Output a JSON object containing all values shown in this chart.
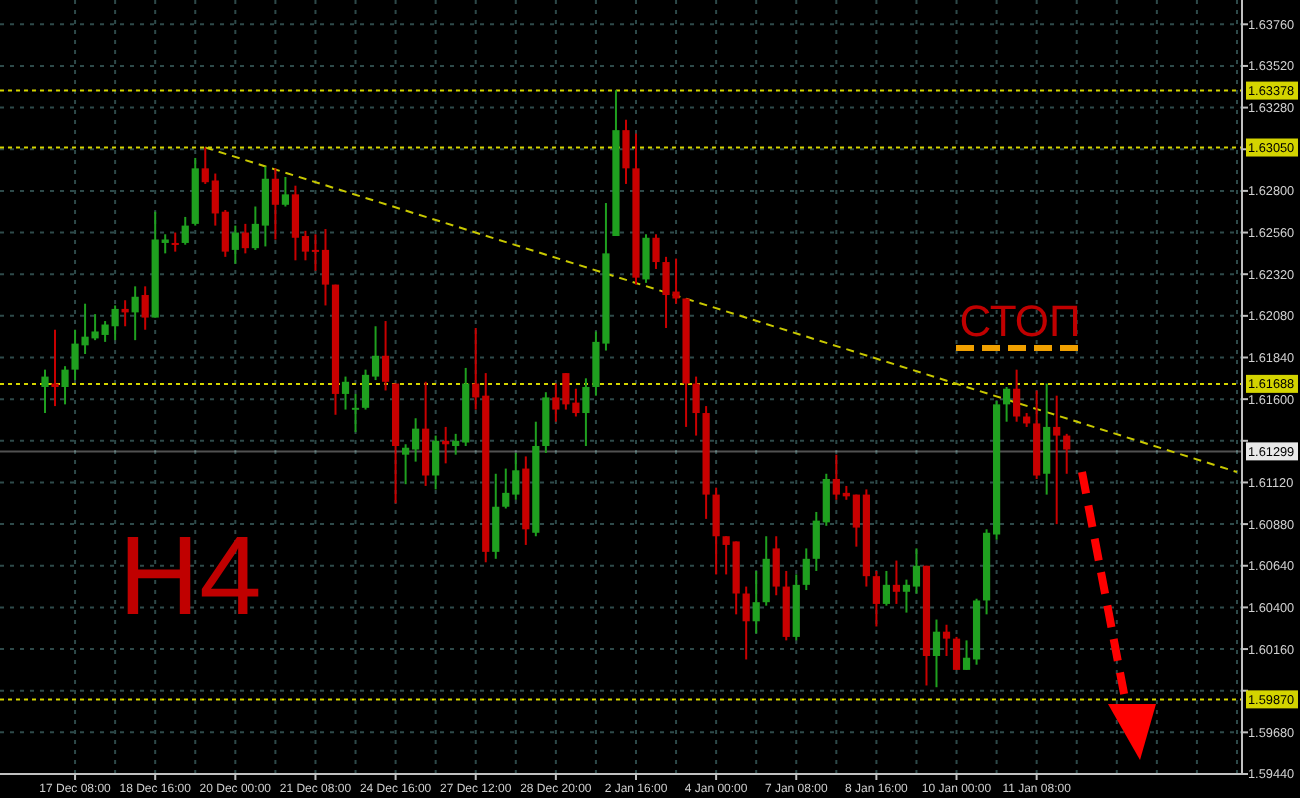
{
  "chart_data": {
    "type": "candlestick",
    "grid": true,
    "annotations": [
      "H4",
      "СТОП"
    ],
    "categories": [
      null,
      null,
      null,
      "17 Dec 08:00",
      null,
      null,
      null,
      null,
      null,
      null,
      null,
      "18 Dec 16:00",
      null,
      null,
      null,
      null,
      null,
      null,
      null,
      "20 Dec 00:00",
      null,
      null,
      null,
      null,
      null,
      null,
      null,
      "21 Dec 08:00",
      null,
      null,
      null,
      null,
      null,
      null,
      null,
      "24 Dec 16:00",
      null,
      null,
      null,
      null,
      null,
      null,
      null,
      "27 Dec 12:00",
      null,
      null,
      null,
      null,
      null,
      null,
      null,
      "28 Dec 20:00",
      null,
      null,
      null,
      null,
      null,
      null,
      null,
      "2 Jan 16:00",
      null,
      null,
      null,
      null,
      null,
      null,
      null,
      "4 Jan 00:00",
      null,
      null,
      null,
      null,
      null,
      null,
      null,
      "7 Jan 08:00",
      null,
      null,
      null,
      null,
      null,
      null,
      null,
      "8 Jan 16:00",
      null,
      null,
      null,
      null,
      null,
      null,
      null,
      "10 Jan 00:00",
      null,
      null,
      null,
      null,
      null,
      null,
      null,
      "11 Jan 08:00",
      null,
      null,
      null,
      null,
      null,
      null,
      null,
      null,
      null,
      null,
      null,
      null,
      null,
      null,
      null,
      null,
      null,
      null,
      null,
      null
    ],
    "ylim": [
      1.5944,
      1.639
    ],
    "yticks": [
      {
        "value": 1.5944,
        "label": "1.59440"
      },
      {
        "value": 1.5968,
        "label": "1.59680"
      },
      {
        "value": 1.5992,
        "label": null
      },
      {
        "value": 1.6016,
        "label": "1.60160"
      },
      {
        "value": 1.604,
        "label": "1.60400"
      },
      {
        "value": 1.6064,
        "label": "1.60640"
      },
      {
        "value": 1.6088,
        "label": "1.60880"
      },
      {
        "value": 1.6112,
        "label": "1.61120"
      },
      {
        "value": 1.6136,
        "label": null
      },
      {
        "value": 1.616,
        "label": "1.61600"
      },
      {
        "value": 1.6184,
        "label": "1.61840"
      },
      {
        "value": 1.6208,
        "label": "1.62080"
      },
      {
        "value": 1.6232,
        "label": "1.62320"
      },
      {
        "value": 1.6256,
        "label": "1.62560"
      },
      {
        "value": 1.628,
        "label": "1.62800"
      },
      {
        "value": 1.6304,
        "label": null
      },
      {
        "value": 1.6328,
        "label": "1.63280"
      },
      {
        "value": 1.6352,
        "label": "1.63520"
      },
      {
        "value": 1.6376,
        "label": "1.63760"
      }
    ],
    "ref_lines": [
      {
        "axis": "y",
        "value": 1.63378,
        "label": "1.63378",
        "color": "#d4d400",
        "line_style": "dotted"
      },
      {
        "axis": "y",
        "value": 1.6305,
        "label": "1.63050",
        "color": "#d4d400",
        "line_style": "dotted"
      },
      {
        "axis": "y",
        "value": 1.61688,
        "label": "1.61688",
        "color": "#d4d400",
        "line_style": "dotted"
      },
      {
        "axis": "y",
        "value": 1.5987,
        "label": "1.59870",
        "color": "#d4d400",
        "line_style": "dotted"
      },
      {
        "axis": "y",
        "value": 1.61299,
        "label": "1.61299",
        "color": "#e8e8e8",
        "line_style": "solid"
      }
    ],
    "series": [
      {
        "type": "line",
        "color": "#c8c800",
        "line_style": "dashed",
        "values": [
          null,
          null,
          null,
          null,
          null,
          null,
          null,
          null,
          null,
          null,
          null,
          null,
          null,
          null,
          null,
          null,
          1.6305,
          null,
          null,
          null,
          null,
          null,
          null,
          null,
          null,
          null,
          null,
          null,
          null,
          null,
          null,
          null,
          null,
          null,
          null,
          null,
          null,
          null,
          null,
          null,
          null,
          null,
          null,
          null,
          null,
          null,
          null,
          null,
          null,
          null,
          null,
          null,
          null,
          null,
          null,
          null,
          null,
          null,
          null,
          null,
          null,
          null,
          null,
          null,
          null,
          null,
          null,
          null,
          null,
          null,
          null,
          null,
          null,
          null,
          null,
          null,
          null,
          null,
          null,
          null,
          null,
          null,
          null,
          null,
          null,
          null,
          null,
          null,
          null,
          null,
          null,
          null,
          null,
          null,
          null,
          null,
          null,
          null,
          null,
          null,
          null,
          null,
          null,
          null,
          null,
          null,
          null,
          null,
          null,
          null,
          null,
          null,
          null,
          null,
          null,
          null,
          null,
          null,
          null,
          1.6118
        ]
      }
    ],
    "ohlc": [
      [
        1.6167,
        1.6177,
        1.6152,
        1.6173
      ],
      [
        1.6169,
        1.62,
        1.6156,
        1.6167
      ],
      [
        1.6167,
        1.6179,
        1.6157,
        1.6177
      ],
      [
        1.6177,
        1.62,
        1.6171,
        1.6192
      ],
      [
        1.6191,
        1.6215,
        1.6186,
        1.6196
      ],
      [
        1.6195,
        1.6209,
        1.6194,
        1.6199
      ],
      [
        1.6197,
        1.6205,
        1.6193,
        1.6203
      ],
      [
        1.6202,
        1.6214,
        1.6194,
        1.6212
      ],
      [
        1.6212,
        1.6217,
        1.6202,
        1.621
      ],
      [
        1.621,
        1.6225,
        1.6194,
        1.6219
      ],
      [
        1.622,
        1.6225,
        1.62,
        1.6207
      ],
      [
        1.6207,
        1.6268,
        1.6207,
        1.6252
      ],
      [
        1.625,
        1.6255,
        1.6244,
        1.6252
      ],
      [
        1.625,
        1.6256,
        1.6245,
        1.6249
      ],
      [
        1.625,
        1.6265,
        1.6249,
        1.626
      ],
      [
        1.6261,
        1.6299,
        1.626,
        1.6293
      ],
      [
        1.6293,
        1.6305,
        1.6284,
        1.6285
      ],
      [
        1.6286,
        1.629,
        1.626,
        1.6267
      ],
      [
        1.6268,
        1.6269,
        1.6242,
        1.6245
      ],
      [
        1.6246,
        1.626,
        1.6238,
        1.6256
      ],
      [
        1.6256,
        1.6261,
        1.6244,
        1.6247
      ],
      [
        1.6247,
        1.6271,
        1.6246,
        1.6261
      ],
      [
        1.626,
        1.6294,
        1.6248,
        1.6287
      ],
      [
        1.6287,
        1.6293,
        1.6252,
        1.6272
      ],
      [
        1.6272,
        1.6288,
        1.6271,
        1.6278
      ],
      [
        1.6278,
        1.6283,
        1.624,
        1.6253
      ],
      [
        1.6254,
        1.6257,
        1.624,
        1.6245
      ],
      [
        1.6246,
        1.6255,
        1.6234,
        1.6245
      ],
      [
        1.6246,
        1.6258,
        1.6214,
        1.6226
      ],
      [
        1.6226,
        1.6226,
        1.6151,
        1.6163
      ],
      [
        1.6163,
        1.6173,
        1.6154,
        1.617
      ],
      [
        1.6154,
        1.6163,
        1.6141,
        1.6155
      ],
      [
        1.6155,
        1.6177,
        1.6154,
        1.6174
      ],
      [
        1.6173,
        1.6202,
        1.6171,
        1.6185
      ],
      [
        1.6185,
        1.6205,
        1.6165,
        1.617
      ],
      [
        1.6169,
        1.6169,
        1.61,
        1.6133
      ],
      [
        1.6128,
        1.6134,
        1.6111,
        1.6132
      ],
      [
        1.6131,
        1.6149,
        1.6124,
        1.6143
      ],
      [
        1.6143,
        1.617,
        1.611,
        1.6116
      ],
      [
        1.6116,
        1.6139,
        1.6108,
        1.6136
      ],
      [
        1.6136,
        1.6144,
        1.6123,
        1.6134
      ],
      [
        1.6133,
        1.614,
        1.6128,
        1.6136
      ],
      [
        1.6135,
        1.6178,
        1.6133,
        1.6169
      ],
      [
        1.6169,
        1.6201,
        1.6154,
        1.6161
      ],
      [
        1.6162,
        1.6175,
        1.6066,
        1.6072
      ],
      [
        1.6072,
        1.6117,
        1.6068,
        1.6098
      ],
      [
        1.6098,
        1.612,
        1.6097,
        1.6106
      ],
      [
        1.6105,
        1.6129,
        1.6102,
        1.6119
      ],
      [
        1.612,
        1.6127,
        1.6076,
        1.6085
      ],
      [
        1.6083,
        1.6147,
        1.6081,
        1.6133
      ],
      [
        1.6133,
        1.6164,
        1.6129,
        1.6161
      ],
      [
        1.6161,
        1.6169,
        1.6147,
        1.6154
      ],
      [
        1.6175,
        1.6175,
        1.6154,
        1.6157
      ],
      [
        1.6158,
        1.6166,
        1.615,
        1.6152
      ],
      [
        1.6152,
        1.6172,
        1.6133,
        1.6167
      ],
      [
        1.6167,
        1.6199,
        1.6162,
        1.6193
      ],
      [
        1.6192,
        1.6273,
        1.6188,
        1.6244
      ],
      [
        1.6254,
        1.6338,
        1.6254,
        1.6315
      ],
      [
        1.6315,
        1.6321,
        1.6284,
        1.6293
      ],
      [
        1.6293,
        1.6313,
        1.6226,
        1.623
      ],
      [
        1.6229,
        1.6255,
        1.6227,
        1.6253
      ],
      [
        1.6253,
        1.6255,
        1.6235,
        1.6239
      ],
      [
        1.6239,
        1.6242,
        1.6201,
        1.622
      ],
      [
        1.6222,
        1.6241,
        1.6215,
        1.6218
      ],
      [
        1.6218,
        1.6218,
        1.6144,
        1.6169
      ],
      [
        1.6169,
        1.6173,
        1.6139,
        1.6152
      ],
      [
        1.6152,
        1.6156,
        1.6091,
        1.6105
      ],
      [
        1.6105,
        1.6109,
        1.6059,
        1.6081
      ],
      [
        1.6081,
        1.6081,
        1.6059,
        1.6076
      ],
      [
        1.6078,
        1.6078,
        1.6036,
        1.6048
      ],
      [
        1.6048,
        1.6052,
        1.601,
        1.6032
      ],
      [
        1.6032,
        1.6061,
        1.6025,
        1.6043
      ],
      [
        1.6043,
        1.6081,
        1.6041,
        1.6068
      ],
      [
        1.6074,
        1.6081,
        1.6047,
        1.6052
      ],
      [
        1.6052,
        1.6061,
        1.6021,
        1.6023
      ],
      [
        1.6023,
        1.6059,
        1.6021,
        1.6053
      ],
      [
        1.6053,
        1.6074,
        1.605,
        1.6068
      ],
      [
        1.6068,
        1.6095,
        1.6061,
        1.609
      ],
      [
        1.6089,
        1.6117,
        1.6087,
        1.6114
      ],
      [
        1.6114,
        1.6128,
        1.6102,
        1.6105
      ],
      [
        1.6106,
        1.611,
        1.6102,
        1.6104
      ],
      [
        1.6105,
        1.6105,
        1.6075,
        1.6086
      ],
      [
        1.6105,
        1.6108,
        1.6052,
        1.6058
      ],
      [
        1.6058,
        1.6061,
        1.6029,
        1.6042
      ],
      [
        1.6042,
        1.6061,
        1.6041,
        1.6053
      ],
      [
        1.6053,
        1.6067,
        1.6042,
        1.6049
      ],
      [
        1.6049,
        1.6056,
        1.6037,
        1.6053
      ],
      [
        1.6052,
        1.6074,
        1.6048,
        1.6064
      ],
      [
        1.6064,
        1.6064,
        1.5995,
        1.6012
      ],
      [
        1.6012,
        1.6033,
        1.5994,
        1.6026
      ],
      [
        1.6026,
        1.603,
        1.6012,
        1.6022
      ],
      [
        1.6022,
        1.6023,
        1.6004,
        1.6004
      ],
      [
        1.6004,
        1.6021,
        1.6004,
        1.6011
      ],
      [
        1.601,
        1.6045,
        1.6007,
        1.6044
      ],
      [
        1.6044,
        1.6085,
        1.6036,
        1.6083
      ],
      [
        1.6082,
        1.6159,
        1.6079,
        1.6157
      ],
      [
        1.6157,
        1.6167,
        1.6147,
        1.6166
      ],
      [
        1.6166,
        1.6177,
        1.6147,
        1.615
      ],
      [
        1.615,
        1.6152,
        1.6144,
        1.6146
      ],
      [
        1.6146,
        1.6165,
        1.6114,
        1.6116
      ],
      [
        1.6117,
        1.6169,
        1.6105,
        1.6144
      ],
      [
        1.6144,
        1.6162,
        1.6088,
        1.6139
      ],
      [
        1.6139,
        1.614,
        1.6117,
        1.6131
      ],
      null,
      null,
      null,
      null,
      null,
      null,
      null,
      null,
      null,
      null,
      null,
      null,
      null,
      null,
      null,
      null,
      null
    ],
    "colors": [
      "#1fa01f",
      "#c80000",
      "#1fa01f",
      "#1fa01f",
      "#1fa01f",
      "#1fa01f",
      "#1fa01f",
      "#1fa01f",
      "#c80000",
      "#1fa01f",
      "#c80000",
      "#1fa01f",
      "#1fa01f",
      "#c80000",
      "#1fa01f",
      "#1fa01f",
      "#c80000",
      "#c80000",
      "#c80000",
      "#1fa01f",
      "#c80000",
      "#1fa01f",
      "#1fa01f",
      "#c80000",
      "#1fa01f",
      "#c80000",
      "#c80000",
      "#c80000",
      "#c80000",
      "#c80000",
      "#1fa01f",
      "#1fa01f",
      "#1fa01f",
      "#1fa01f",
      "#c80000",
      "#c80000",
      "#1fa01f",
      "#1fa01f",
      "#c80000",
      "#1fa01f",
      "#c80000",
      "#1fa01f",
      "#1fa01f",
      "#c80000",
      "#c80000",
      "#1fa01f",
      "#1fa01f",
      "#1fa01f",
      "#c80000",
      "#1fa01f",
      "#1fa01f",
      "#c80000",
      "#c80000",
      "#c80000",
      "#1fa01f",
      "#1fa01f",
      "#1fa01f",
      "#1fa01f",
      "#c80000",
      "#c80000",
      "#1fa01f",
      "#c80000",
      "#c80000",
      "#c80000",
      "#c80000",
      "#c80000",
      "#c80000",
      "#c80000",
      "#c80000",
      "#c80000",
      "#c80000",
      "#1fa01f",
      "#1fa01f",
      "#c80000",
      "#c80000",
      "#1fa01f",
      "#1fa01f",
      "#1fa01f",
      "#1fa01f",
      "#c80000",
      "#c80000",
      "#c80000",
      "#c80000",
      "#c80000",
      "#1fa01f",
      "#c80000",
      "#1fa01f",
      "#1fa01f",
      "#c80000",
      "#1fa01f",
      "#c80000",
      "#c80000",
      "#1fa01f",
      "#1fa01f",
      "#1fa01f",
      "#1fa01f",
      "#1fa01f",
      "#c80000",
      "#c80000",
      "#c80000",
      "#1fa01f",
      "#c80000",
      "#c80000",
      null,
      null,
      null,
      null,
      null,
      null,
      null,
      null,
      null,
      null,
      null,
      null,
      null,
      null,
      null,
      null,
      null
    ]
  }
}
